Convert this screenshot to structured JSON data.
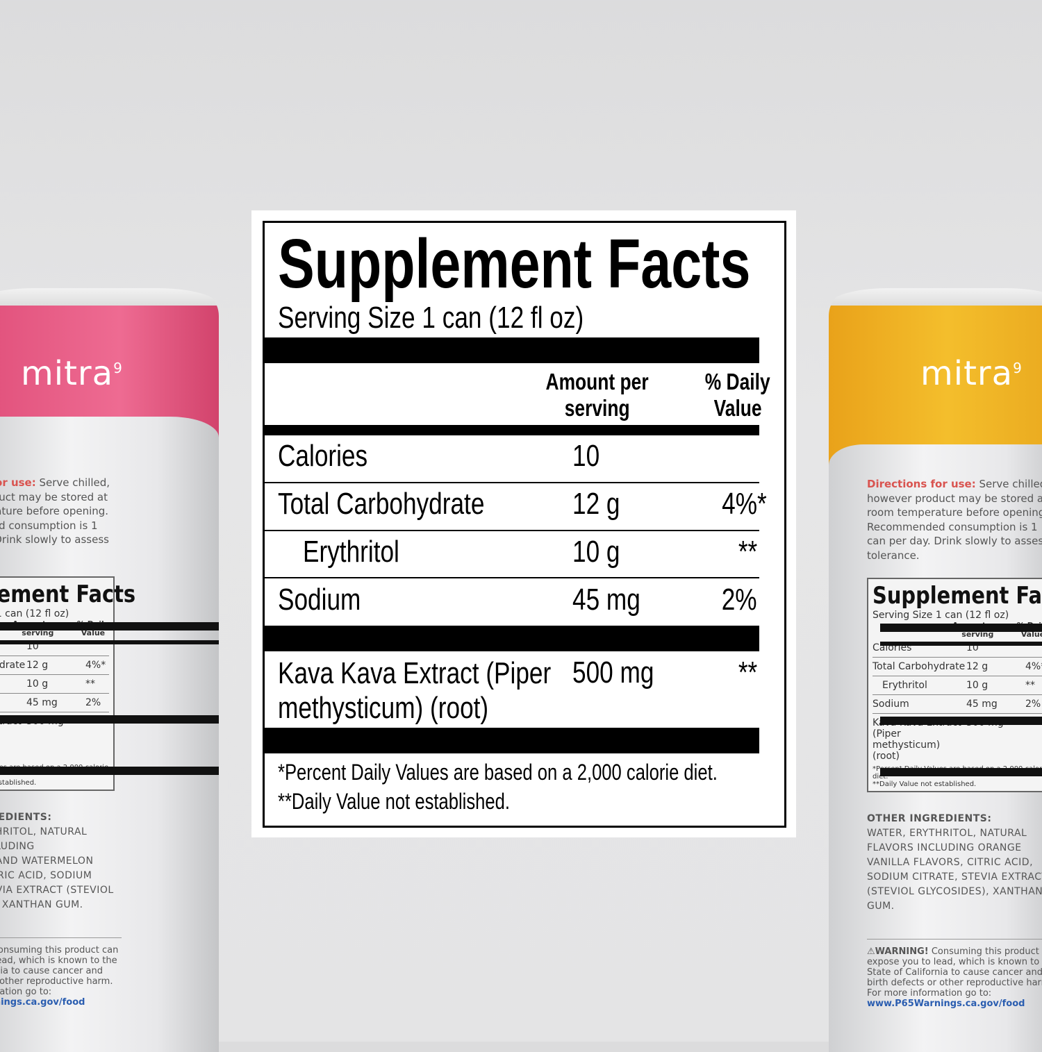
{
  "label": {
    "title": "Supplement Facts",
    "serving_size": "Serving Size 1 can (12 fl oz)",
    "header_amount": [
      "Amount per",
      "serving"
    ],
    "header_dv": [
      "% Daily",
      "Value"
    ],
    "rows": [
      {
        "name": "Calories",
        "amount": "10",
        "dv": ""
      },
      {
        "name": "Total Carbohydrate",
        "amount": "12 g",
        "dv": "4%*"
      },
      {
        "name": "Erythritol",
        "amount": "10 g",
        "dv": "**"
      },
      {
        "name": "Sodium",
        "amount": "45 mg",
        "dv": "2%"
      }
    ],
    "kava": {
      "name_line1": "Kava Kava Extract (Piper",
      "name_line2": "methysticum) (root)",
      "amount": "500 mg",
      "dv": "**"
    },
    "footnotes": [
      "*Percent Daily Values are based on a 2,000 calorie diet.",
      "**Daily Value not established."
    ]
  },
  "cans": {
    "brand": "mitra",
    "brand_mark": "9",
    "colors": {
      "left": "#e85a84",
      "right": "#f0b428",
      "directions_label": "#d9534f"
    },
    "directions_label": "Directions for use:",
    "directions_text": " Serve chilled, however product may be stored at room temperature before opening. Recommended consumption is 1 can per day. Drink slowly to assess tolerance.",
    "other_ingredients_title": "OTHER INGREDIENTS:",
    "left_ingredients": "WATER, ERYTHRITOL, NATURAL FLAVORS INCLUDING STRAWBERRYAND WATERMELON FLAVORS, CITRIC ACID, SODIUM CITRATE, STEVIA EXTRACT (STEVIOL GLYCOSIDES), XANTHAN GUM.",
    "right_ingredients": "WATER, ERYTHRITOL, NATURAL FLAVORS INCLUDING ORANGE VANILLA FLAVORS, CITRIC ACID, SODIUM CITRATE, STEVIA EXTRACT (STEVIOL GLYCOSIDES), XANTHAN GUM.",
    "warning_label": "WARNING!",
    "warning_text": " Consuming this product can expose you to lead, which is known to the State of California to cause cancer and birth defects or other reproductive harm. For more information go to: ",
    "warning_link": "www.P65Warnings.ca.gov/food"
  }
}
